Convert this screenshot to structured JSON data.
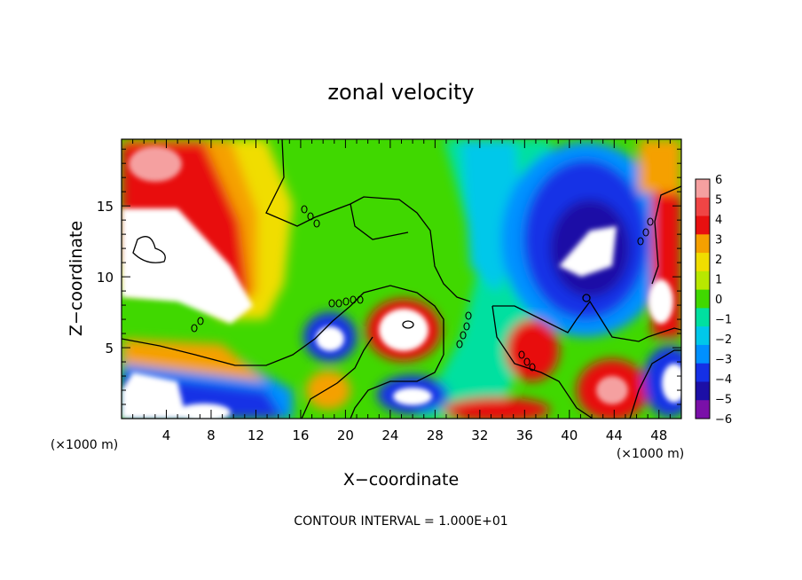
{
  "chart_data": {
    "type": "heatmap",
    "title": "zonal velocity",
    "xlabel": "X−coordinate",
    "ylabel": "Z−coordinate",
    "x_unit": "(×1000 m)",
    "x_unit_right": "(×1000 m)",
    "xlim": [
      0,
      50
    ],
    "ylim": [
      0,
      19.7
    ],
    "x_ticks": [
      "4",
      "8",
      "12",
      "16",
      "20",
      "24",
      "28",
      "32",
      "36",
      "40",
      "44",
      "48"
    ],
    "y_ticks": [
      "5",
      "10",
      "15"
    ],
    "colorbar_labels": [
      "6",
      "5",
      "4",
      "3",
      "2",
      "1",
      "0",
      "−1",
      "−2",
      "−3",
      "−4",
      "−5",
      "−6"
    ],
    "colorbar_colors": [
      "#f5a0a0",
      "#f04545",
      "#e81010",
      "#f5a000",
      "#f0dd00",
      "#b8e800",
      "#40d800",
      "#00e0a0",
      "#00c8ea",
      "#0090ff",
      "#1530e6",
      "#1c0fa6",
      "#7a10a8"
    ],
    "colorbar_range": [
      -6,
      6
    ],
    "contour_interval_text": "CONTOUR INTERVAL = 1.000E+01"
  }
}
